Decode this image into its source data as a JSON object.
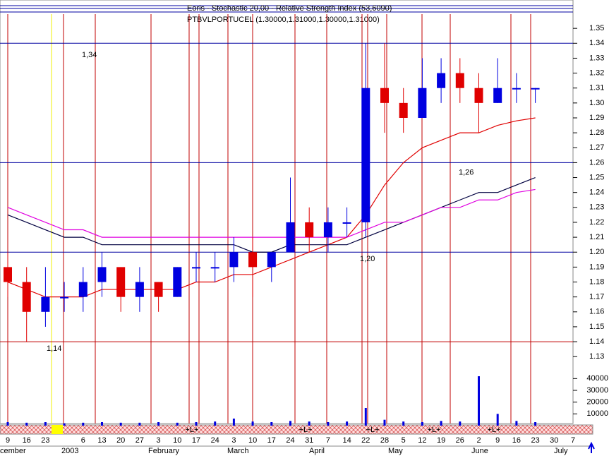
{
  "header": {
    "line1": "Eoris - Stochastic 20,00 - Relative Strength Index (53,6090)",
    "line2": "PTBVLPORTUCEL (1.30000,1.31000,1.30000,1.31000)"
  },
  "chart_data": {
    "type": "ohlc",
    "categories": [
      "9",
      "16",
      "23",
      null,
      "6",
      "13",
      "20",
      "27",
      "3",
      "10",
      "17",
      "24",
      "3",
      "10",
      "17",
      "24",
      "31",
      "7",
      "14",
      "22",
      "28",
      "5",
      "12",
      "19",
      "26",
      "2",
      "9",
      "16",
      "23",
      "30",
      "7"
    ],
    "months": [
      "cember",
      "2003",
      "February",
      "March",
      "April",
      "May",
      "June",
      "July"
    ],
    "open": [
      1.19,
      1.18,
      1.16,
      1.17,
      1.17,
      1.18,
      1.19,
      1.17,
      1.18,
      1.17,
      1.19,
      1.19,
      1.19,
      1.2,
      1.19,
      1.2,
      1.22,
      1.21,
      1.22,
      1.22,
      1.31,
      1.3,
      1.29,
      1.31,
      1.32,
      1.31,
      1.3,
      1.31,
      1.31,
      null,
      null
    ],
    "high": [
      1.2,
      1.19,
      1.19,
      1.18,
      1.19,
      1.2,
      1.19,
      1.19,
      1.18,
      1.19,
      1.2,
      1.2,
      1.21,
      1.21,
      1.2,
      1.25,
      1.23,
      1.23,
      1.23,
      1.34,
      1.34,
      1.31,
      1.33,
      1.33,
      1.33,
      1.32,
      1.33,
      1.32,
      1.31,
      null,
      null
    ],
    "low": [
      1.17,
      1.14,
      1.15,
      1.16,
      1.16,
      1.17,
      1.16,
      1.16,
      1.16,
      1.17,
      1.18,
      1.18,
      1.18,
      1.17,
      1.18,
      1.2,
      1.2,
      1.2,
      1.21,
      1.21,
      1.28,
      1.28,
      1.29,
      1.3,
      1.3,
      1.28,
      1.3,
      1.3,
      1.3,
      null,
      null
    ],
    "close": [
      1.18,
      1.16,
      1.17,
      1.17,
      1.18,
      1.19,
      1.17,
      1.18,
      1.17,
      1.19,
      1.19,
      1.19,
      1.2,
      1.19,
      1.2,
      1.22,
      1.21,
      1.22,
      1.22,
      1.31,
      1.3,
      1.29,
      1.31,
      1.32,
      1.31,
      1.3,
      1.31,
      1.31,
      1.31,
      null,
      null
    ],
    "up_color": "#0000e0",
    "down_color": "#e00000",
    "series": [
      {
        "color": "#e00000",
        "values": [
          1.18,
          1.175,
          1.17,
          1.17,
          1.17,
          1.175,
          1.175,
          1.175,
          1.175,
          1.175,
          1.18,
          1.18,
          1.185,
          1.185,
          1.19,
          1.195,
          1.2,
          1.205,
          1.21,
          1.225,
          1.245,
          1.26,
          1.27,
          1.275,
          1.28,
          1.28,
          1.285,
          1.288,
          1.29,
          null,
          null
        ]
      },
      {
        "color": "#000040",
        "values": [
          1.225,
          1.22,
          1.215,
          1.21,
          1.21,
          1.205,
          1.205,
          1.205,
          1.205,
          1.205,
          1.205,
          1.205,
          1.205,
          1.2,
          1.2,
          1.205,
          1.205,
          1.205,
          1.205,
          1.21,
          1.215,
          1.22,
          1.225,
          1.23,
          1.235,
          1.24,
          1.24,
          1.245,
          1.25,
          null,
          null
        ]
      },
      {
        "color": "#e000e0",
        "values": [
          1.23,
          1.225,
          1.22,
          1.215,
          1.215,
          1.21,
          1.21,
          1.21,
          1.21,
          1.21,
          1.21,
          1.21,
          1.21,
          1.21,
          1.21,
          1.21,
          1.21,
          1.21,
          1.21,
          1.215,
          1.22,
          1.22,
          1.225,
          1.23,
          1.23,
          1.235,
          1.235,
          1.24,
          1.242,
          null,
          null
        ]
      }
    ],
    "levels": [
      {
        "value": 1.34,
        "label": "1,34",
        "color": "#0000a0"
      },
      {
        "value": 1.26,
        "label": "1,26",
        "color": "#0000a0"
      },
      {
        "value": 1.2,
        "label": "1,20",
        "color": "#0000a0"
      },
      {
        "value": 1.14,
        "label": "1,14",
        "color": "#c00000"
      }
    ],
    "ylim": [
      1.123,
      1.369
    ],
    "yticks": [
      {
        "value": 1.13,
        "label": "1.13"
      },
      {
        "value": 1.14,
        "label": "1.14"
      },
      {
        "value": 1.15,
        "label": "1.15"
      },
      {
        "value": 1.16,
        "label": "1.16"
      },
      {
        "value": 1.17,
        "label": "1.17"
      },
      {
        "value": 1.18,
        "label": "1.18"
      },
      {
        "value": 1.19,
        "label": "1.19"
      },
      {
        "value": 1.2,
        "label": "1.20"
      },
      {
        "value": 1.21,
        "label": "1.21"
      },
      {
        "value": 1.22,
        "label": "1.22"
      },
      {
        "value": 1.23,
        "label": "1.23"
      },
      {
        "value": 1.24,
        "label": "1.24"
      },
      {
        "value": 1.25,
        "label": "1.25"
      },
      {
        "value": 1.26,
        "label": "1.26"
      },
      {
        "value": 1.27,
        "label": "1.27"
      },
      {
        "value": 1.28,
        "label": "1.28"
      },
      {
        "value": 1.29,
        "label": "1.29"
      },
      {
        "value": 1.3,
        "label": "1.30"
      },
      {
        "value": 1.31,
        "label": "1.31"
      },
      {
        "value": 1.32,
        "label": "1.32"
      },
      {
        "value": 1.33,
        "label": "1.33"
      },
      {
        "value": 1.34,
        "label": "1.34"
      },
      {
        "value": 1.35,
        "label": "1.35"
      }
    ],
    "volume": {
      "color": "#0000e0",
      "values": [
        3000,
        2500,
        3000,
        2000,
        2500,
        3000,
        2500,
        2500,
        3000,
        2500,
        3000,
        3500,
        6000,
        3500,
        3000,
        4000,
        3500,
        3000,
        3500,
        15000,
        5000,
        3500,
        3000,
        4000,
        3500,
        42000,
        10000,
        4000,
        3000,
        null,
        null
      ],
      "ylim": [
        0,
        48000
      ],
      "yticks": [
        10000,
        20000,
        30000,
        40000
      ]
    },
    "strip_labels": [
      "+L+",
      "+L+",
      "+L+",
      "+L+",
      "+L+"
    ]
  }
}
